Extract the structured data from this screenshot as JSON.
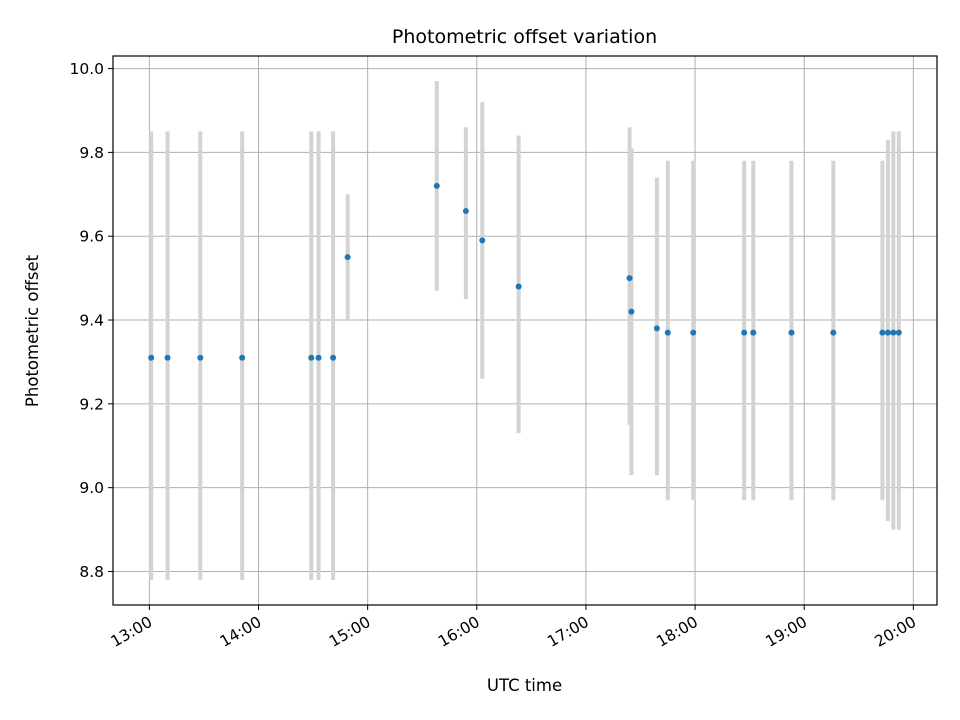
{
  "chart_data": {
    "type": "scatter",
    "title": "Photometric offset variation",
    "xlabel": "UTC time",
    "ylabel": "Photometric offset",
    "x_ticks": [
      "13:00",
      "14:00",
      "15:00",
      "16:00",
      "17:00",
      "18:00",
      "19:00",
      "20:00"
    ],
    "y_ticks": [
      "8.8",
      "9.0",
      "9.2",
      "9.4",
      "9.6",
      "9.8",
      "10.0"
    ],
    "xlim": [
      "12:40",
      "20:13"
    ],
    "ylim": [
      8.72,
      10.03
    ],
    "grid": true,
    "point_color": "#1f77b4",
    "errorbar_color": "#d3d3d3",
    "points": [
      {
        "time": "13:01",
        "y": 9.31,
        "ylow": 8.78,
        "yhigh": 9.85
      },
      {
        "time": "13:10",
        "y": 9.31,
        "ylow": 8.78,
        "yhigh": 9.85
      },
      {
        "time": "13:28",
        "y": 9.31,
        "ylow": 8.78,
        "yhigh": 9.85
      },
      {
        "time": "13:51",
        "y": 9.31,
        "ylow": 8.78,
        "yhigh": 9.85
      },
      {
        "time": "14:29",
        "y": 9.31,
        "ylow": 8.78,
        "yhigh": 9.85
      },
      {
        "time": "14:33",
        "y": 9.31,
        "ylow": 8.78,
        "yhigh": 9.85
      },
      {
        "time": "14:41",
        "y": 9.31,
        "ylow": 8.78,
        "yhigh": 9.85
      },
      {
        "time": "14:49",
        "y": 9.55,
        "ylow": 9.4,
        "yhigh": 9.7
      },
      {
        "time": "15:38",
        "y": 9.72,
        "ylow": 9.47,
        "yhigh": 9.97
      },
      {
        "time": "15:54",
        "y": 9.66,
        "ylow": 9.45,
        "yhigh": 9.86
      },
      {
        "time": "16:03",
        "y": 9.59,
        "ylow": 9.26,
        "yhigh": 9.92
      },
      {
        "time": "16:23",
        "y": 9.48,
        "ylow": 9.13,
        "yhigh": 9.84
      },
      {
        "time": "17:24",
        "y": 9.5,
        "ylow": 9.15,
        "yhigh": 9.86
      },
      {
        "time": "17:25",
        "y": 9.42,
        "ylow": 9.03,
        "yhigh": 9.81
      },
      {
        "time": "17:39",
        "y": 9.38,
        "ylow": 9.03,
        "yhigh": 9.74
      },
      {
        "time": "17:45",
        "y": 9.37,
        "ylow": 8.97,
        "yhigh": 9.78
      },
      {
        "time": "17:59",
        "y": 9.37,
        "ylow": 8.97,
        "yhigh": 9.78
      },
      {
        "time": "18:27",
        "y": 9.37,
        "ylow": 8.97,
        "yhigh": 9.78
      },
      {
        "time": "18:32",
        "y": 9.37,
        "ylow": 8.97,
        "yhigh": 9.78
      },
      {
        "time": "18:53",
        "y": 9.37,
        "ylow": 8.97,
        "yhigh": 9.78
      },
      {
        "time": "19:16",
        "y": 9.37,
        "ylow": 8.97,
        "yhigh": 9.78
      },
      {
        "time": "19:43",
        "y": 9.37,
        "ylow": 8.97,
        "yhigh": 9.78
      },
      {
        "time": "19:46",
        "y": 9.37,
        "ylow": 8.92,
        "yhigh": 9.83
      },
      {
        "time": "19:49",
        "y": 9.37,
        "ylow": 8.9,
        "yhigh": 9.85
      },
      {
        "time": "19:52",
        "y": 9.37,
        "ylow": 8.9,
        "yhigh": 9.85
      }
    ]
  }
}
